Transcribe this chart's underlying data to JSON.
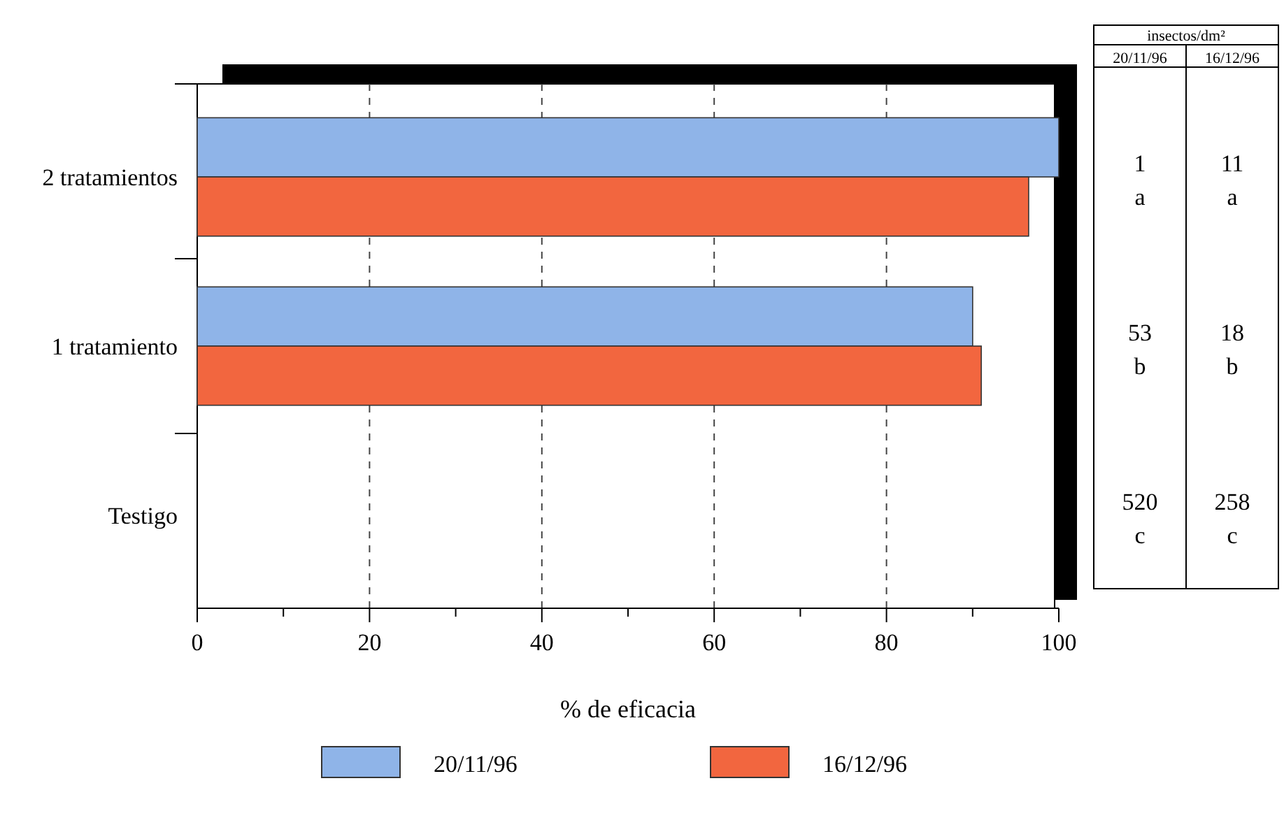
{
  "chart_data": {
    "type": "bar",
    "orientation": "horizontal",
    "categories": [
      "2 tratamientos",
      "1 tratamiento",
      "Testigo"
    ],
    "series": [
      {
        "name": "20/11/96",
        "color": "#8fb4e8",
        "values": [
          100,
          90,
          0
        ]
      },
      {
        "name": "16/12/96",
        "color": "#f2663f",
        "values": [
          96.5,
          91,
          0
        ]
      }
    ],
    "xlabel": "% de eficacia",
    "xlim": [
      0,
      100
    ],
    "xticks": [
      0,
      {
        "value": 10,
        "label": null
      },
      20,
      {
        "value": 30,
        "label": null
      },
      40,
      {
        "value": 50,
        "label": null
      },
      60,
      {
        "value": 70,
        "label": null
      },
      80,
      {
        "value": 90,
        "label": null
      },
      100
    ],
    "grid": "x",
    "legend": "bottom",
    "annotations": [
      "insectos/dm²",
      "20/11/96",
      "16/12/96",
      "1",
      "11",
      "a",
      "a",
      "53",
      "18",
      "b",
      "b",
      "520",
      "258",
      "c",
      "c"
    ]
  }
}
